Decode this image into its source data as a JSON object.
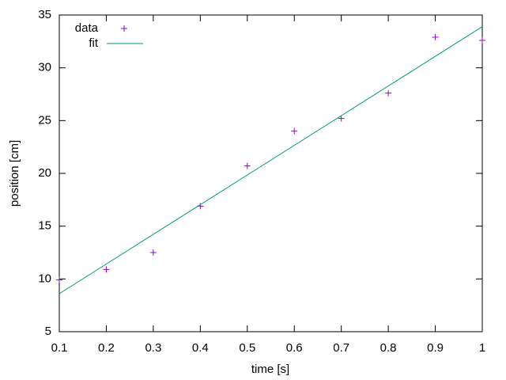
{
  "chart_data": {
    "type": "scatter",
    "xlabel": "time [s]",
    "ylabel": "position [cm]",
    "xlim": [
      0.1,
      1
    ],
    "xticks": [
      0.1,
      0.2,
      0.3,
      0.4,
      0.5,
      0.6,
      0.7,
      0.8,
      0.9,
      1
    ],
    "ylim": [
      5,
      35
    ],
    "yticks": [
      5,
      10,
      15,
      20,
      25,
      30,
      35
    ],
    "legend": "top-left",
    "series": [
      {
        "name": "data",
        "style": "points",
        "color": "#9400d3",
        "x": [
          0.1,
          0.2,
          0.3,
          0.4,
          0.5,
          0.6,
          0.7,
          0.8,
          0.9,
          1
        ],
        "values": [
          9.9,
          10.9,
          12.5,
          16.9,
          20.7,
          24.0,
          25.2,
          27.6,
          32.9,
          32.6
        ]
      },
      {
        "name": "fit",
        "style": "lines",
        "color": "#009e73",
        "x": [
          0.1,
          1
        ],
        "values": [
          8.6,
          33.9
        ]
      }
    ]
  }
}
